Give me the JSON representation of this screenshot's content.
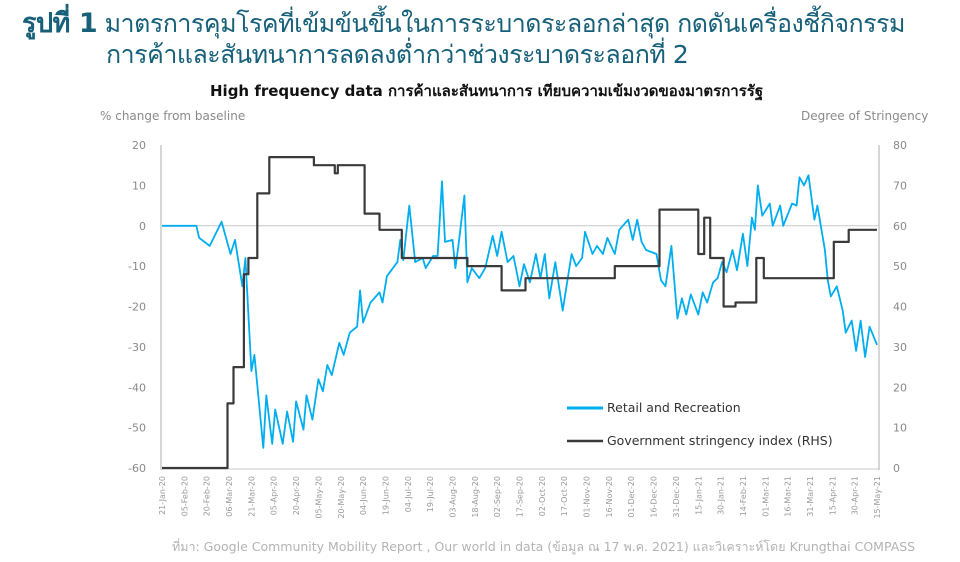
{
  "header": {
    "figure_label": "รูปที่ 1",
    "title_line1": "มาตรการคุมโรคที่เข้มข้นขึ้นในการระบาดระลอกล่าสุด กดดันเครื่องชี้กิจกรรม",
    "title_line2": "การค้าและสันทนาการลดลงต่ำกว่าช่วงระบาดระลอกที่ 2",
    "title_color": "#17607a"
  },
  "source": "ที่มา: Google Community  Mobility Report , Our world in data (ข้อมูล ณ 17 พ.ค. 2021) และวิเคราะห์โดย Krungthai COMPASS",
  "chart_data": {
    "type": "line",
    "title": "High frequency data การค้าและสันทนาการ เทียบความเข้มงวดของมาตรการรัฐ",
    "ylabel": "% change from baseline",
    "ylabel_right": "Degree of Stringency",
    "ylim": [
      -60,
      20
    ],
    "yticks": [
      "20",
      "10",
      "0",
      "-10",
      "-20",
      "-30",
      "-40",
      "-50",
      "-60"
    ],
    "ylim_right": [
      0,
      80
    ],
    "yticks_right": [
      "80",
      "70",
      "60",
      "50",
      "40",
      "30",
      "20",
      "10",
      "0"
    ],
    "xlim": [
      "2020-01-21",
      "2021-05-15"
    ],
    "xticks": [
      "21-Jan-20",
      "05-Feb-20",
      "20-Feb-20",
      "06-Mar-20",
      "21-Mar-20",
      "05-Apr-20",
      "20-Apr-20",
      "05-May-20",
      "20-May-20",
      "04-Jun-20",
      "19-Jun-20",
      "04-Jul-20",
      "19-Jul-20",
      "03-Aug-20",
      "18-Aug-20",
      "02-Sep-20",
      "17-Sep-20",
      "02-Oct-20",
      "17-Oct-20",
      "01-Nov-20",
      "16-Nov-20",
      "01-Dec-20",
      "16-Dec-20",
      "31-Dec-20",
      "15-Jan-21",
      "30-Jan-21",
      "14-Feb-21",
      "01-Mar-21",
      "16-Mar-21",
      "31-Mar-21",
      "15-Apr-21",
      "30-Apr-21",
      "15-May-21"
    ],
    "grid": false,
    "zero_line": true,
    "legend_position": "bottom-right",
    "series": [
      {
        "name": "Retail and Recreation",
        "axis": "left",
        "color": "#00aeef",
        "points": [
          [
            "2020-01-21",
            0
          ],
          [
            "2020-02-13",
            0
          ],
          [
            "2020-02-15",
            -3
          ],
          [
            "2020-02-22",
            -5
          ],
          [
            "2020-03-01",
            1
          ],
          [
            "2020-03-07",
            -7
          ],
          [
            "2020-03-10",
            -3.5
          ],
          [
            "2020-03-15",
            -15
          ],
          [
            "2020-03-17",
            -8
          ],
          [
            "2020-03-21",
            -36
          ],
          [
            "2020-03-23",
            -32
          ],
          [
            "2020-03-29",
            -55
          ],
          [
            "2020-03-31",
            -42
          ],
          [
            "2020-04-04",
            -54
          ],
          [
            "2020-04-06",
            -45.5
          ],
          [
            "2020-04-11",
            -54
          ],
          [
            "2020-04-14",
            -46
          ],
          [
            "2020-04-18",
            -53.5
          ],
          [
            "2020-04-20",
            -43.5
          ],
          [
            "2020-04-25",
            -50.5
          ],
          [
            "2020-04-27",
            -42
          ],
          [
            "2020-05-01",
            -48
          ],
          [
            "2020-05-05",
            -38
          ],
          [
            "2020-05-08",
            -41
          ],
          [
            "2020-05-11",
            -34.5
          ],
          [
            "2020-05-14",
            -37
          ],
          [
            "2020-05-19",
            -29
          ],
          [
            "2020-05-22",
            -32
          ],
          [
            "2020-05-26",
            -26.5
          ],
          [
            "2020-05-31",
            -25
          ],
          [
            "2020-06-02",
            -16
          ],
          [
            "2020-06-04",
            -24
          ],
          [
            "2020-06-09",
            -19
          ],
          [
            "2020-06-15",
            -16.5
          ],
          [
            "2020-06-17",
            -19
          ],
          [
            "2020-06-20",
            -12.5
          ],
          [
            "2020-06-27",
            -9
          ],
          [
            "2020-06-29",
            -3.5
          ],
          [
            "2020-07-01",
            -8.5
          ],
          [
            "2020-07-05",
            5
          ],
          [
            "2020-07-09",
            -9
          ],
          [
            "2020-07-14",
            -8
          ],
          [
            "2020-07-16",
            -10.5
          ],
          [
            "2020-07-21",
            -7.5
          ],
          [
            "2020-07-24",
            -7.5
          ],
          [
            "2020-07-27",
            11
          ],
          [
            "2020-07-29",
            -4
          ],
          [
            "2020-08-03",
            -3.5
          ],
          [
            "2020-08-05",
            -10.5
          ],
          [
            "2020-08-07",
            -5
          ],
          [
            "2020-08-11",
            7.5
          ],
          [
            "2020-08-13",
            -14
          ],
          [
            "2020-08-16",
            -10.5
          ],
          [
            "2020-08-21",
            -13
          ],
          [
            "2020-08-25",
            -10.5
          ],
          [
            "2020-08-30",
            -2.5
          ],
          [
            "2020-09-02",
            -7.5
          ],
          [
            "2020-09-05",
            -1.5
          ],
          [
            "2020-09-09",
            -9
          ],
          [
            "2020-09-13",
            -7.5
          ],
          [
            "2020-09-17",
            -15
          ],
          [
            "2020-09-20",
            -9.5
          ],
          [
            "2020-09-24",
            -14
          ],
          [
            "2020-09-28",
            -7
          ],
          [
            "2020-10-01",
            -13
          ],
          [
            "2020-10-04",
            -7
          ],
          [
            "2020-10-07",
            -18
          ],
          [
            "2020-10-11",
            -9
          ],
          [
            "2020-10-16",
            -21
          ],
          [
            "2020-10-22",
            -7
          ],
          [
            "2020-10-25",
            -10
          ],
          [
            "2020-10-29",
            -8
          ],
          [
            "2020-10-31",
            -1.5
          ],
          [
            "2020-11-05",
            -7
          ],
          [
            "2020-11-08",
            -5
          ],
          [
            "2020-11-12",
            -7
          ],
          [
            "2020-11-15",
            -3
          ],
          [
            "2020-11-20",
            -7
          ],
          [
            "2020-11-23",
            -1
          ],
          [
            "2020-11-29",
            1.5
          ],
          [
            "2020-12-02",
            -3.5
          ],
          [
            "2020-12-05",
            1.5
          ],
          [
            "2020-12-08",
            -4
          ],
          [
            "2020-12-11",
            -6
          ],
          [
            "2020-12-18",
            -7
          ],
          [
            "2020-12-21",
            -13.5
          ],
          [
            "2020-12-24",
            -15
          ],
          [
            "2020-12-28",
            -5
          ],
          [
            "2021-01-01",
            -23
          ],
          [
            "2021-01-04",
            -18
          ],
          [
            "2021-01-07",
            -22
          ],
          [
            "2021-01-10",
            -17
          ],
          [
            "2021-01-15",
            -22
          ],
          [
            "2021-01-18",
            -16.5
          ],
          [
            "2021-01-21",
            -19
          ],
          [
            "2021-01-25",
            -14
          ],
          [
            "2021-01-28",
            -13
          ],
          [
            "2021-01-31",
            -9
          ],
          [
            "2021-02-03",
            -11.5
          ],
          [
            "2021-02-07",
            -6
          ],
          [
            "2021-02-10",
            -11
          ],
          [
            "2021-02-14",
            -2
          ],
          [
            "2021-02-17",
            -10
          ],
          [
            "2021-02-20",
            2
          ],
          [
            "2021-02-22",
            -1
          ],
          [
            "2021-02-24",
            10
          ],
          [
            "2021-02-27",
            2.5
          ],
          [
            "2021-03-04",
            5.5
          ],
          [
            "2021-03-06",
            0
          ],
          [
            "2021-03-11",
            5
          ],
          [
            "2021-03-13",
            0
          ],
          [
            "2021-03-19",
            5.5
          ],
          [
            "2021-03-22",
            5
          ],
          [
            "2021-03-24",
            12
          ],
          [
            "2021-03-27",
            10
          ],
          [
            "2021-03-30",
            12.5
          ],
          [
            "2021-04-03",
            1.5
          ],
          [
            "2021-04-05",
            5
          ],
          [
            "2021-04-10",
            -6
          ],
          [
            "2021-04-12",
            -13.5
          ],
          [
            "2021-04-14",
            -17.5
          ],
          [
            "2021-04-18",
            -15
          ],
          [
            "2021-04-22",
            -21
          ],
          [
            "2021-04-24",
            -26.5
          ],
          [
            "2021-04-28",
            -23.5
          ],
          [
            "2021-05-01",
            -31
          ],
          [
            "2021-05-04",
            -23.5
          ],
          [
            "2021-05-07",
            -32.5
          ],
          [
            "2021-05-10",
            -25
          ],
          [
            "2021-05-15",
            -29.5
          ]
        ]
      },
      {
        "name": "Government stringency index (RHS)",
        "axis": "right",
        "color": "#3a3a3a",
        "step": true,
        "points": [
          [
            "2020-01-21",
            0
          ],
          [
            "2020-03-05",
            16
          ],
          [
            "2020-03-09",
            25
          ],
          [
            "2020-03-16",
            48
          ],
          [
            "2020-03-19",
            52
          ],
          [
            "2020-03-25",
            68
          ],
          [
            "2020-04-02",
            77
          ],
          [
            "2020-05-02",
            75
          ],
          [
            "2020-05-16",
            73
          ],
          [
            "2020-05-18",
            75
          ],
          [
            "2020-06-05",
            63
          ],
          [
            "2020-06-15",
            59
          ],
          [
            "2020-06-30",
            52
          ],
          [
            "2020-08-13",
            50
          ],
          [
            "2020-09-05",
            44
          ],
          [
            "2020-09-21",
            47
          ],
          [
            "2020-11-20",
            50
          ],
          [
            "2020-12-20",
            64
          ],
          [
            "2021-01-15",
            53
          ],
          [
            "2021-01-19",
            62
          ],
          [
            "2021-01-23",
            52
          ],
          [
            "2021-02-01",
            40
          ],
          [
            "2021-02-09",
            41
          ],
          [
            "2021-02-23",
            52
          ],
          [
            "2021-02-28",
            47
          ],
          [
            "2021-04-16",
            56
          ],
          [
            "2021-04-26",
            59
          ],
          [
            "2021-05-15",
            59
          ]
        ]
      }
    ]
  }
}
